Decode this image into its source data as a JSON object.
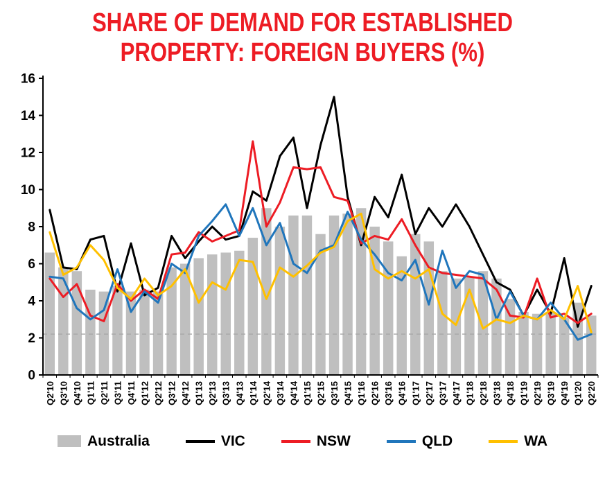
{
  "page": {
    "background": "#FFFFFF"
  },
  "chart": {
    "title_line1": "SHARE OF DEMAND FOR ESTABLISHED",
    "title_line2": "PROPERTY: FOREIGN BUYERS (%)",
    "title_color": "#ED1C24"
  },
  "chart_data": {
    "type": "combo",
    "title": "SHARE OF DEMAND FOR ESTABLISHED PROPERTY: FOREIGN BUYERS (%)",
    "xlabel": "",
    "ylabel": "",
    "ylim": [
      0,
      16
    ],
    "ytick_step": 2,
    "grid": false,
    "legend_position": "bottom",
    "reference_line": 2.2,
    "reference_line_color": "#A6A6A6",
    "categories": [
      "Q2'10",
      "Q3'10",
      "Q4'10",
      "Q1'11",
      "Q2'11",
      "Q3'11",
      "Q4'11",
      "Q1'12",
      "Q2'12",
      "Q3'12",
      "Q4'12",
      "Q1'13",
      "Q2'13",
      "Q3'13",
      "Q4'13",
      "Q1'14",
      "Q2'14",
      "Q3'14",
      "Q4'14",
      "Q1'15",
      "Q2'15",
      "Q3'15",
      "Q4'15",
      "Q1'16",
      "Q2'16",
      "Q3'16",
      "Q4'16",
      "Q1'17",
      "Q2'17",
      "Q3'17",
      "Q4'17",
      "Q1'18",
      "Q2'18",
      "Q3'18",
      "Q4'18",
      "Q1'19",
      "Q2'19",
      "Q3'19",
      "Q4'19",
      "Q1'20",
      "Q2'20"
    ],
    "series": [
      {
        "name": "Australia",
        "type": "bar",
        "color": "#BFBFBF",
        "values": [
          6.6,
          5.8,
          5.6,
          4.6,
          4.5,
          4.8,
          4.5,
          4.6,
          4.5,
          5.8,
          6.0,
          6.3,
          6.5,
          6.6,
          6.7,
          7.4,
          9.0,
          8.0,
          8.6,
          8.6,
          7.6,
          8.6,
          8.7,
          9.0,
          8.0,
          7.2,
          6.4,
          7.6,
          7.2,
          5.6,
          5.2,
          5.3,
          5.6,
          5.2,
          4.1,
          3.4,
          3.3,
          3.4,
          3.1,
          3.9,
          3.2
        ]
      },
      {
        "name": "VIC",
        "type": "line",
        "color": "#000000",
        "values": [
          8.9,
          5.8,
          5.7,
          7.3,
          7.5,
          4.5,
          7.1,
          4.3,
          4.7,
          7.5,
          6.3,
          7.2,
          8.0,
          7.3,
          7.5,
          9.9,
          9.4,
          11.8,
          12.8,
          9.0,
          12.4,
          15.0,
          9.6,
          7.0,
          9.6,
          8.5,
          10.8,
          7.6,
          9.0,
          8.0,
          9.2,
          8.0,
          6.5,
          5.0,
          4.6,
          3.2,
          4.6,
          3.3,
          6.3,
          2.6,
          4.8
        ]
      },
      {
        "name": "NSW",
        "type": "line",
        "color": "#ED1C24",
        "values": [
          5.2,
          4.2,
          4.9,
          3.2,
          2.9,
          4.9,
          4.0,
          4.6,
          4.1,
          6.5,
          6.6,
          7.7,
          7.2,
          7.5,
          7.8,
          12.6,
          8.0,
          9.3,
          11.2,
          11.1,
          11.2,
          9.6,
          9.4,
          7.1,
          7.5,
          7.3,
          8.4,
          7.0,
          5.8,
          5.5,
          5.4,
          5.3,
          5.2,
          4.6,
          3.2,
          3.1,
          5.2,
          3.1,
          3.3,
          2.8,
          3.3
        ]
      },
      {
        "name": "QLD",
        "type": "line",
        "color": "#2076BC",
        "values": [
          5.3,
          5.2,
          3.6,
          3.0,
          3.5,
          5.7,
          3.4,
          4.5,
          3.9,
          6.0,
          5.5,
          7.5,
          8.3,
          9.2,
          7.5,
          9.0,
          7.0,
          8.2,
          6.0,
          5.5,
          6.7,
          7.0,
          8.8,
          7.3,
          6.5,
          5.5,
          5.1,
          6.2,
          3.8,
          6.7,
          4.7,
          5.6,
          5.4,
          3.0,
          4.5,
          3.2,
          3.0,
          3.9,
          3.0,
          1.9,
          2.2
        ]
      },
      {
        "name": "WA",
        "type": "line",
        "color": "#FFC000",
        "values": [
          7.7,
          5.4,
          5.8,
          7.0,
          6.2,
          4.7,
          4.1,
          5.2,
          4.3,
          4.8,
          5.7,
          3.9,
          5.0,
          4.6,
          6.2,
          6.1,
          4.1,
          5.8,
          5.3,
          5.9,
          6.6,
          6.9,
          8.3,
          8.7,
          5.7,
          5.2,
          5.6,
          5.2,
          5.7,
          3.3,
          2.7,
          4.6,
          2.5,
          3.0,
          2.8,
          3.2,
          3.0,
          3.5,
          3.0,
          4.8,
          2.3
        ]
      }
    ]
  }
}
